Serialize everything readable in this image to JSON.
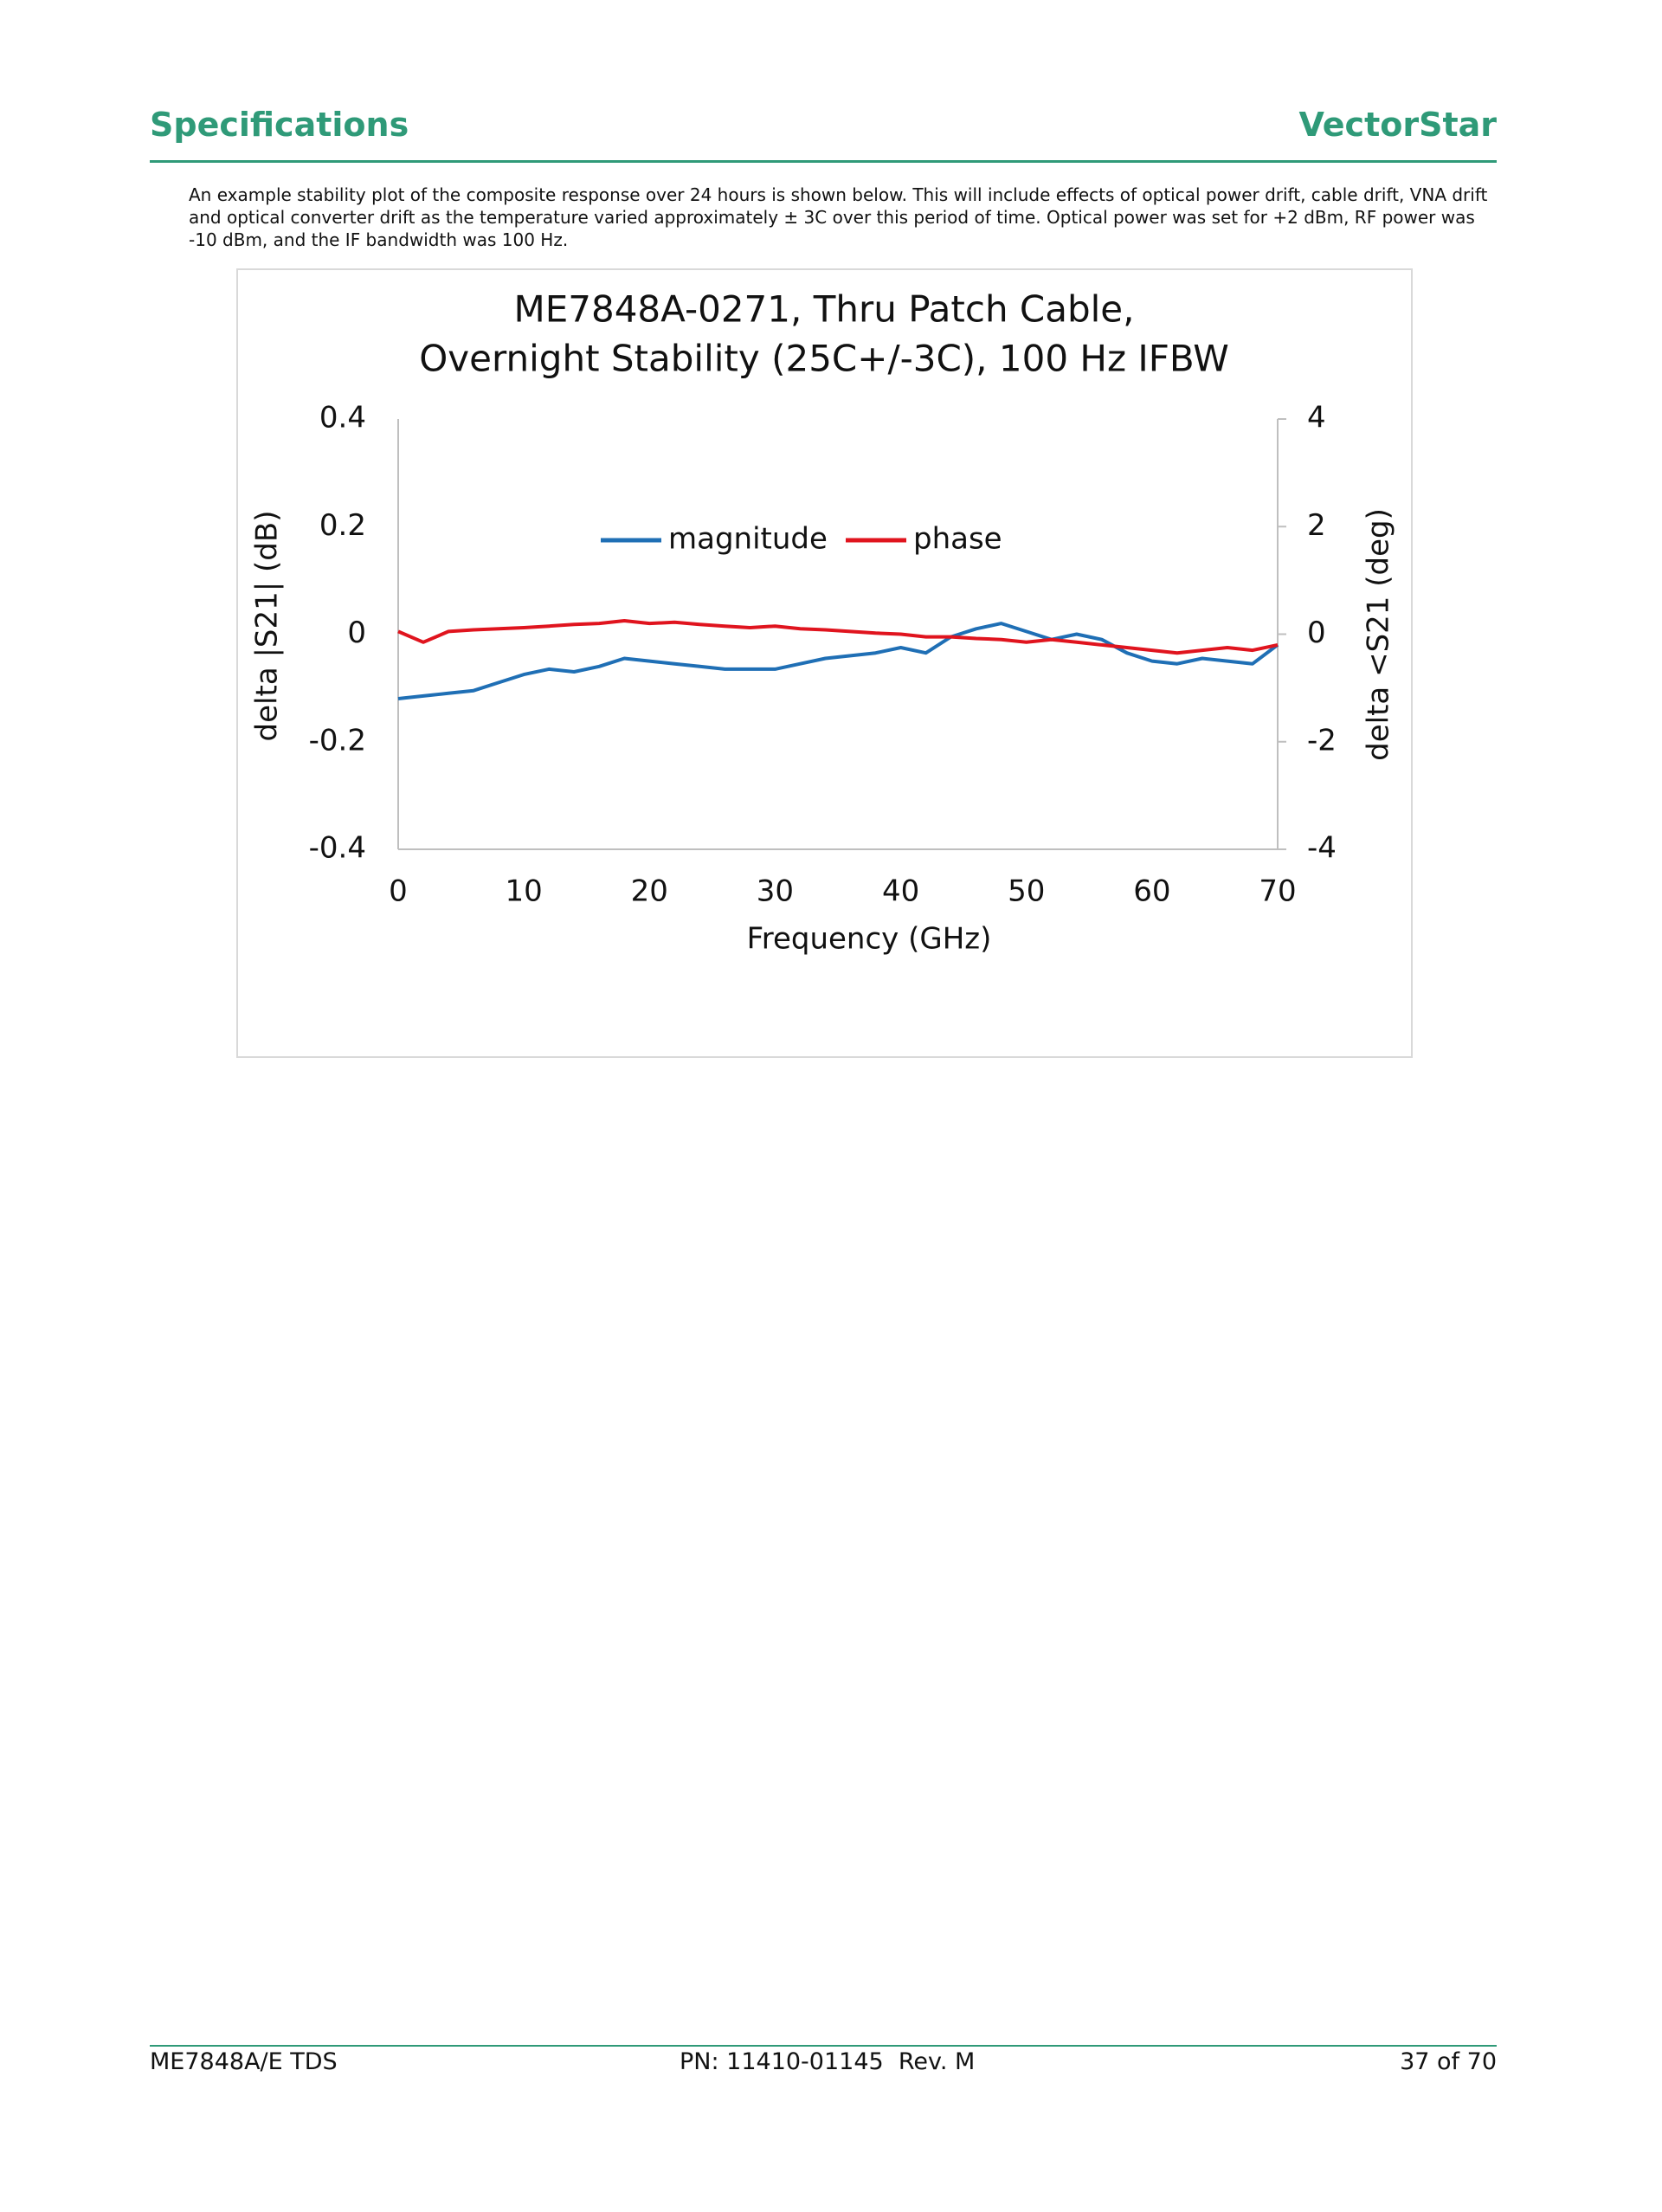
{
  "header": {
    "left": "Specifications",
    "right": "VectorStar"
  },
  "paragraph": {
    "lines": [
      "An example stability plot of the composite response over 24 hours is shown below. This will include effects of optical power drift, cable drift, VNA drift",
      "and optical converter drift as the temperature varied approximately ± 3C over this period of time. Optical power was set for +2 dBm, RF power was",
      "-10 dBm, and the IF bandwidth was 100 Hz."
    ]
  },
  "chart_data": {
    "type": "line",
    "title": [
      "ME7848A-0271, Thru Patch Cable,",
      "Overnight Stability (25C+/-3C), 100 Hz IFBW"
    ],
    "x_label": "Frequency (GHz)",
    "y_label": "delta |S21| (dB)",
    "y2_label": "delta <S21 (deg)",
    "x": [
      0,
      2,
      4,
      6,
      8,
      10,
      12,
      14,
      16,
      18,
      20,
      22,
      24,
      26,
      28,
      30,
      32,
      34,
      36,
      38,
      40,
      42,
      44,
      46,
      48,
      50,
      52,
      54,
      56,
      58,
      60,
      62,
      64,
      66,
      68,
      70
    ],
    "series": [
      {
        "name": "magnitude",
        "color": "#1f6fb5",
        "values": [
          -0.12,
          -0.115,
          -0.11,
          -0.105,
          -0.09,
          -0.075,
          -0.065,
          -0.07,
          -0.06,
          -0.045,
          -0.05,
          -0.055,
          -0.06,
          -0.065,
          -0.065,
          -0.065,
          -0.055,
          -0.045,
          -0.04,
          -0.035,
          -0.025,
          -0.035,
          -0.005,
          0.01,
          0.02,
          0.005,
          -0.01,
          0.0,
          -0.01,
          -0.035,
          -0.05,
          -0.055,
          -0.045,
          -0.05,
          -0.055,
          -0.02
        ]
      },
      {
        "name": "phase",
        "color": "#e0141e",
        "axis": "y2",
        "values": [
          0.05,
          -0.15,
          0.05,
          0.08,
          0.1,
          0.12,
          0.15,
          0.18,
          0.2,
          0.25,
          0.2,
          0.22,
          0.18,
          0.15,
          0.12,
          0.15,
          0.1,
          0.08,
          0.05,
          0.02,
          0.0,
          -0.05,
          -0.05,
          -0.08,
          -0.1,
          -0.15,
          -0.1,
          -0.15,
          -0.2,
          -0.25,
          -0.3,
          -0.35,
          -0.3,
          -0.25,
          -0.3,
          -0.2
        ]
      }
    ],
    "xlim": [
      0,
      70
    ],
    "xticks": [
      0,
      10,
      20,
      30,
      40,
      50,
      60,
      70
    ],
    "ylim": [
      -0.4,
      0.4
    ],
    "yticks": [
      0.4,
      0.2,
      0,
      -0.2,
      -0.4
    ],
    "y2lim": [
      -4,
      4
    ],
    "y2ticks": [
      4,
      2,
      0,
      -2,
      -4
    ],
    "legend": "inside-top",
    "grid": false
  },
  "footer": {
    "left": "ME7848A/E TDS",
    "center": "PN: 11410-01145  Rev. M",
    "right": "37 of 70"
  }
}
